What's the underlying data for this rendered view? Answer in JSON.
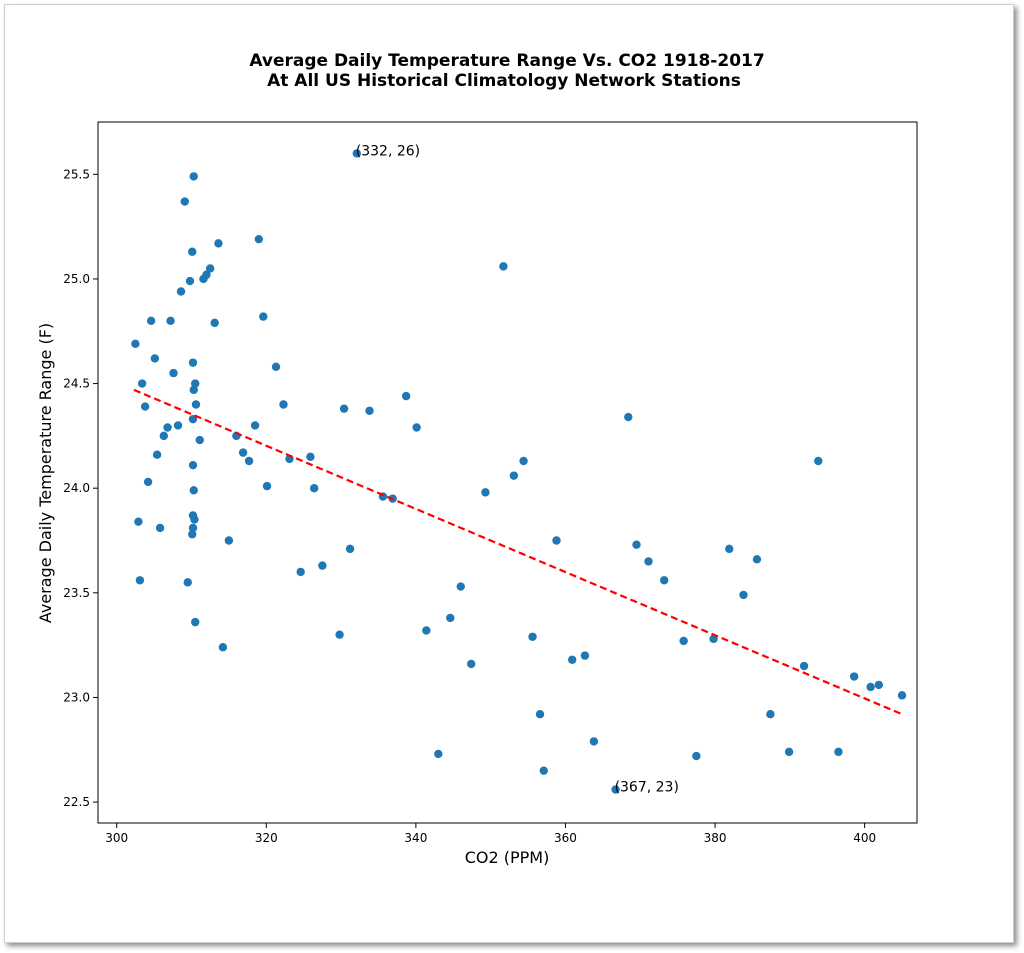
{
  "chart_data": {
    "type": "scatter",
    "title": "Average Daily Temperature Range Vs. CO2 1918-2017",
    "subtitle": "At All US Historical Climatology Network Stations",
    "xlabel": "CO2 (PPM)",
    "ylabel": "Average Daily Temperature Range (F)",
    "xlim": [
      297.5,
      407
    ],
    "ylim": [
      22.4,
      25.75
    ],
    "xticks": [
      300,
      320,
      340,
      360,
      380,
      400
    ],
    "yticks": [
      22.5,
      23.0,
      23.5,
      24.0,
      24.5,
      25.0,
      25.5
    ],
    "grid": false,
    "point_color": "#1f77b4",
    "points": [
      [
        302.5,
        24.69
      ],
      [
        302.9,
        23.84
      ],
      [
        303.1,
        23.56
      ],
      [
        303.4,
        24.5
      ],
      [
        303.8,
        24.39
      ],
      [
        304.2,
        24.03
      ],
      [
        304.6,
        24.8
      ],
      [
        305.1,
        24.62
      ],
      [
        305.4,
        24.16
      ],
      [
        305.8,
        23.81
      ],
      [
        306.3,
        24.25
      ],
      [
        306.8,
        24.29
      ],
      [
        307.2,
        24.8
      ],
      [
        307.6,
        24.55
      ],
      [
        308.2,
        24.3
      ],
      [
        308.6,
        24.94
      ],
      [
        309.1,
        25.37
      ],
      [
        309.5,
        23.55
      ],
      [
        309.8,
        24.99
      ],
      [
        310.1,
        25.13
      ],
      [
        310.3,
        25.49
      ],
      [
        310.2,
        24.6
      ],
      [
        310.3,
        24.47
      ],
      [
        310.5,
        24.5
      ],
      [
        310.6,
        24.4
      ],
      [
        310.2,
        24.33
      ],
      [
        310.2,
        24.11
      ],
      [
        310.3,
        23.99
      ],
      [
        310.2,
        23.87
      ],
      [
        310.4,
        23.85
      ],
      [
        310.2,
        23.81
      ],
      [
        310.1,
        23.78
      ],
      [
        310.5,
        23.36
      ],
      [
        311.1,
        24.23
      ],
      [
        311.6,
        25.0
      ],
      [
        312.0,
        25.02
      ],
      [
        312.5,
        25.05
      ],
      [
        313.1,
        24.79
      ],
      [
        313.6,
        25.17
      ],
      [
        314.2,
        23.24
      ],
      [
        315.0,
        23.75
      ],
      [
        316.0,
        24.25
      ],
      [
        316.9,
        24.17
      ],
      [
        317.7,
        24.13
      ],
      [
        318.5,
        24.3
      ],
      [
        319.0,
        25.19
      ],
      [
        319.6,
        24.82
      ],
      [
        320.1,
        24.01
      ],
      [
        321.3,
        24.58
      ],
      [
        322.3,
        24.4
      ],
      [
        323.1,
        24.14
      ],
      [
        324.6,
        23.6
      ],
      [
        325.9,
        24.15
      ],
      [
        326.4,
        24.0
      ],
      [
        327.5,
        23.63
      ],
      [
        329.8,
        23.3
      ],
      [
        330.4,
        24.38
      ],
      [
        331.2,
        23.71
      ],
      [
        332.1,
        25.6
      ],
      [
        333.8,
        24.37
      ],
      [
        335.6,
        23.96
      ],
      [
        336.9,
        23.95
      ],
      [
        338.7,
        24.44
      ],
      [
        340.1,
        24.29
      ],
      [
        341.4,
        23.32
      ],
      [
        343.0,
        22.73
      ],
      [
        344.6,
        23.38
      ],
      [
        346.0,
        23.53
      ],
      [
        347.4,
        23.16
      ],
      [
        349.3,
        23.98
      ],
      [
        351.7,
        25.06
      ],
      [
        353.1,
        24.06
      ],
      [
        354.4,
        24.13
      ],
      [
        355.6,
        23.29
      ],
      [
        356.6,
        22.92
      ],
      [
        357.1,
        22.65
      ],
      [
        358.8,
        23.75
      ],
      [
        360.9,
        23.18
      ],
      [
        362.6,
        23.2
      ],
      [
        363.8,
        22.79
      ],
      [
        366.7,
        22.56
      ],
      [
        368.4,
        24.34
      ],
      [
        369.5,
        23.73
      ],
      [
        371.1,
        23.65
      ],
      [
        373.2,
        23.56
      ],
      [
        375.8,
        23.27
      ],
      [
        377.5,
        22.72
      ],
      [
        379.8,
        23.28
      ],
      [
        381.9,
        23.71
      ],
      [
        383.8,
        23.49
      ],
      [
        385.6,
        23.66
      ],
      [
        387.4,
        22.92
      ],
      [
        389.9,
        22.74
      ],
      [
        391.9,
        23.15
      ],
      [
        393.8,
        24.13
      ],
      [
        396.5,
        22.74
      ],
      [
        398.6,
        23.1
      ],
      [
        400.8,
        23.05
      ],
      [
        401.9,
        23.06
      ],
      [
        405.0,
        23.01
      ]
    ],
    "trendline": {
      "color": "#ff0000",
      "style": "dashed",
      "from": [
        302.3,
        24.47
      ],
      "to": [
        405.0,
        22.92
      ]
    },
    "annotations": [
      {
        "text": "(332, 26)",
        "x": 332.1,
        "y": 25.6
      },
      {
        "text": "(367, 23)",
        "x": 366.7,
        "y": 22.56
      }
    ]
  }
}
